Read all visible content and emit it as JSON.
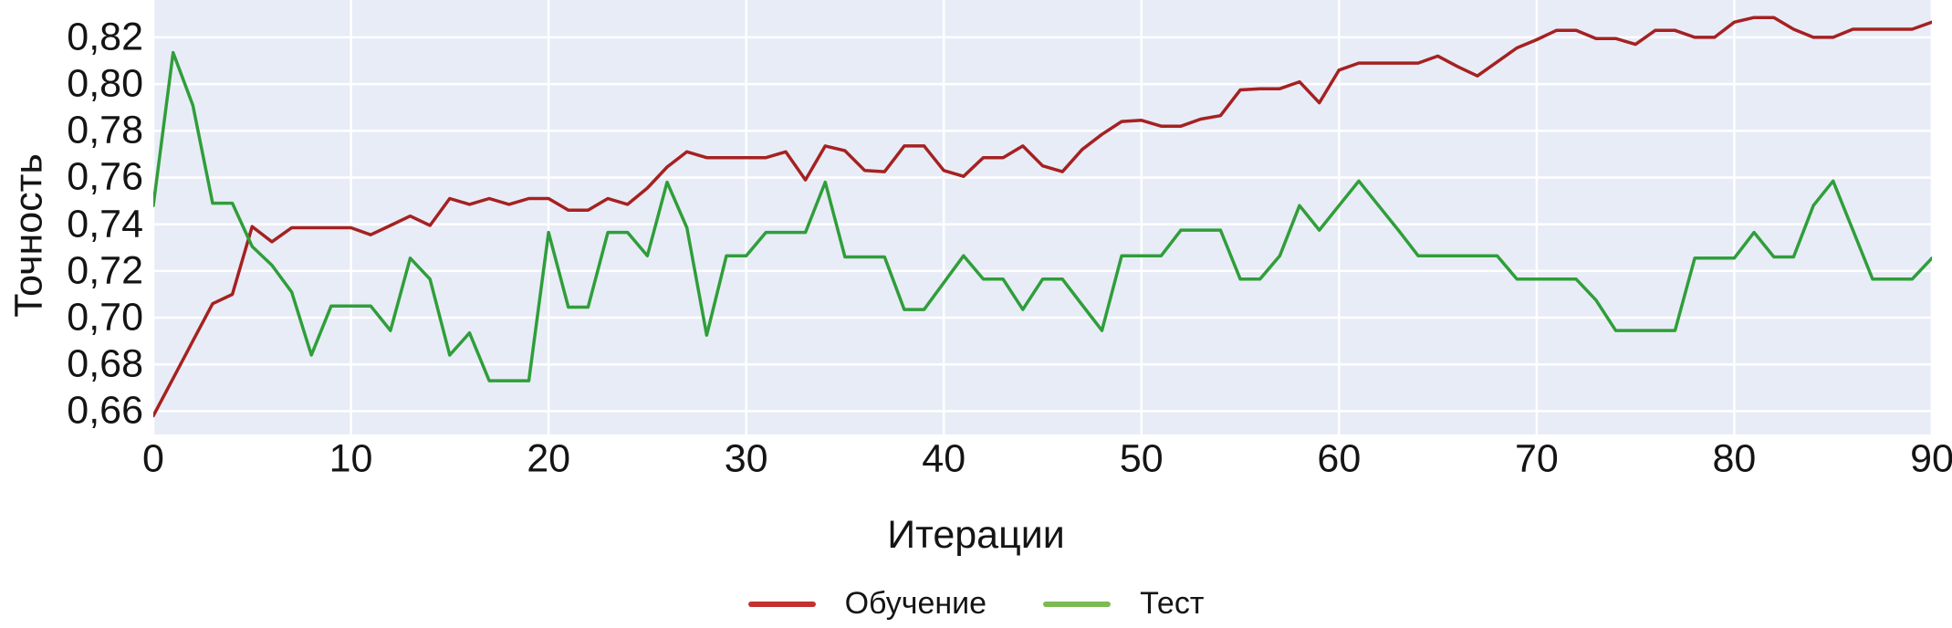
{
  "figure_title": "",
  "axes": {
    "y_title": "Точность",
    "x_title": "Итерации"
  },
  "legend": {
    "position": "bottom-center",
    "items": [
      {
        "label": "Обучение",
        "color": "#c43131"
      },
      {
        "label": "Тест",
        "color": "#7dba52"
      }
    ]
  },
  "colors": {
    "plot_background": "#e8ecf6",
    "gridline": "#ffffff",
    "training_line": "#a52121",
    "test_line": "#2f9e3a",
    "text": "#141414",
    "page_background": "#ffffff"
  },
  "chart_data": {
    "type": "line",
    "title": "",
    "xlabel": "Итерации",
    "ylabel": "Точность",
    "grid": true,
    "legend_position": "bottom-center",
    "xlim": [
      0,
      90
    ],
    "ylim": [
      0.65,
      0.836
    ],
    "x_ticks": {
      "values": [
        0,
        10,
        20,
        30,
        40,
        50,
        60,
        70,
        80,
        90
      ],
      "labels": [
        "0",
        "10",
        "20",
        "30",
        "40",
        "50",
        "60",
        "70",
        "80",
        "90"
      ]
    },
    "y_ticks": {
      "values": [
        0.82,
        0.8,
        0.78,
        0.76,
        0.74,
        0.72,
        0.7,
        0.68,
        0.66
      ],
      "labels": [
        "0,82",
        "0,80",
        "0,78",
        "0,76",
        "0,74",
        "0,72",
        "0,70",
        "0,68",
        "0,66"
      ]
    },
    "x_step": 1,
    "series": [
      {
        "name": "Обучение",
        "color": "#a52121",
        "values": [
          0.658,
          0.674,
          0.69,
          0.706,
          0.71,
          0.739,
          0.7325,
          0.7385,
          0.7385,
          0.7385,
          0.7385,
          0.7355,
          0.7395,
          0.7435,
          0.7395,
          0.751,
          0.7485,
          0.751,
          0.7485,
          0.751,
          0.751,
          0.746,
          0.746,
          0.751,
          0.7485,
          0.7555,
          0.7645,
          0.771,
          0.7685,
          0.7685,
          0.7685,
          0.7685,
          0.771,
          0.759,
          0.7735,
          0.7715,
          0.763,
          0.7625,
          0.7735,
          0.7735,
          0.763,
          0.7605,
          0.7685,
          0.7685,
          0.7735,
          0.765,
          0.7625,
          0.772,
          0.7785,
          0.784,
          0.7845,
          0.782,
          0.782,
          0.785,
          0.7865,
          0.7975,
          0.798,
          0.798,
          0.801,
          0.792,
          0.806,
          0.809,
          0.809,
          0.809,
          0.809,
          0.812,
          0.8075,
          0.8035,
          0.8095,
          0.8155,
          0.819,
          0.823,
          0.823,
          0.8195,
          0.8195,
          0.817,
          0.823,
          0.823,
          0.82,
          0.82,
          0.8265,
          0.8285,
          0.8285,
          0.8235,
          0.82,
          0.82,
          0.8235,
          0.8235,
          0.8235,
          0.8235,
          0.8265
        ]
      },
      {
        "name": "Тест",
        "color": "#2f9e3a",
        "values": [
          0.748,
          0.8135,
          0.791,
          0.749,
          0.749,
          0.7305,
          0.7225,
          0.711,
          0.684,
          0.705,
          0.705,
          0.705,
          0.6945,
          0.7255,
          0.7165,
          0.684,
          0.6935,
          0.673,
          0.673,
          0.673,
          0.7365,
          0.7045,
          0.7045,
          0.7365,
          0.7365,
          0.7265,
          0.758,
          0.7385,
          0.6925,
          0.7265,
          0.7265,
          0.7365,
          0.7365,
          0.7365,
          0.758,
          0.726,
          0.726,
          0.726,
          0.7035,
          0.7035,
          0.715,
          0.7265,
          0.7165,
          0.7165,
          0.7035,
          0.7165,
          0.7165,
          0.7055,
          0.6945,
          0.7265,
          0.7265,
          0.7265,
          0.7375,
          0.7375,
          0.7375,
          0.7165,
          0.7165,
          0.7265,
          0.748,
          0.7375,
          0.748,
          0.7585,
          0.748,
          0.7375,
          0.7265,
          0.7265,
          0.7265,
          0.7265,
          0.7265,
          0.7165,
          0.7165,
          0.7165,
          0.7165,
          0.7075,
          0.6945,
          0.6945,
          0.6945,
          0.6945,
          0.7255,
          0.7255,
          0.7255,
          0.7365,
          0.726,
          0.726,
          0.748,
          0.7585,
          0.7375,
          0.7165,
          0.7165,
          0.7165,
          0.7255
        ]
      }
    ]
  }
}
